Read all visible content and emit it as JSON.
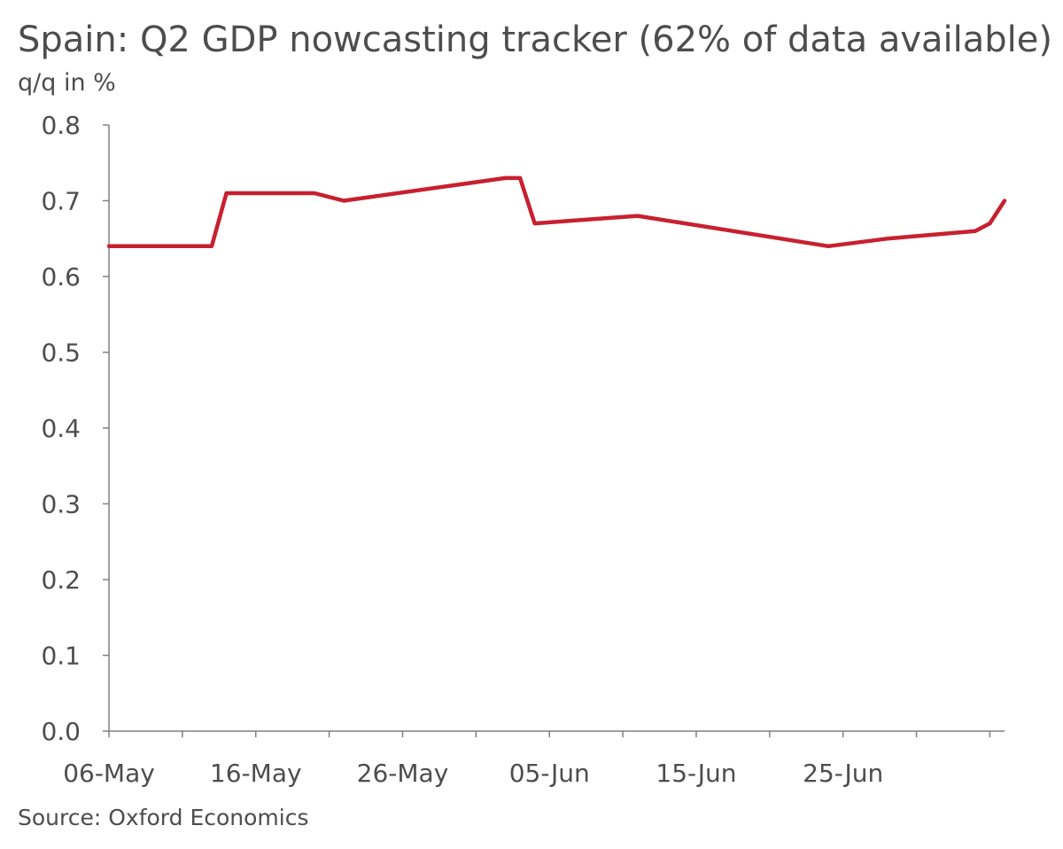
{
  "title": "Spain: Q2 GDP nowcasting tracker (62% of data available)",
  "unit_label": "q/q in %",
  "source": "Source: Oxford Economics",
  "chart_data": {
    "type": "line",
    "title": "Spain: Q2 GDP nowcasting tracker (62% of data available)",
    "ylabel": "q/q in %",
    "xlabel": "",
    "ylim": [
      0,
      0.8
    ],
    "yticks": [
      "0.0",
      "0.1",
      "0.2",
      "0.3",
      "0.4",
      "0.5",
      "0.6",
      "0.7",
      "0.8"
    ],
    "xticks": [
      "06-May",
      "16-May",
      "26-May",
      "05-Jun",
      "15-Jun",
      "25-Jun"
    ],
    "grid": false,
    "legend": "none",
    "series": [
      {
        "color": "#c8202f",
        "points": [
          {
            "x": "06-May",
            "y": 0.64
          },
          {
            "x": "13-May",
            "y": 0.64
          },
          {
            "x": "14-May",
            "y": 0.71
          },
          {
            "x": "20-May",
            "y": 0.71
          },
          {
            "x": "22-May",
            "y": 0.7
          },
          {
            "x": "02-Jun",
            "y": 0.73
          },
          {
            "x": "03-Jun",
            "y": 0.73
          },
          {
            "x": "04-Jun",
            "y": 0.67
          },
          {
            "x": "11-Jun",
            "y": 0.68
          },
          {
            "x": "24-Jun",
            "y": 0.64
          },
          {
            "x": "28-Jun",
            "y": 0.65
          },
          {
            "x": "04-Jul",
            "y": 0.66
          },
          {
            "x": "05-Jul",
            "y": 0.67
          },
          {
            "x": "06-Jul",
            "y": 0.7
          }
        ]
      }
    ]
  }
}
